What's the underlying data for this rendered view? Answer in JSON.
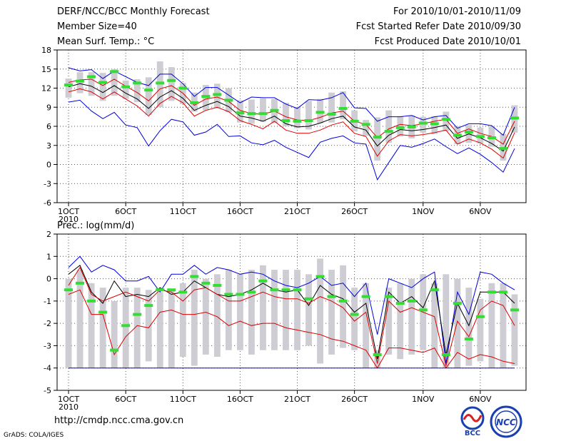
{
  "header": {
    "title": "DERF/NCC/BCC Monthly Forecast",
    "member_size": "Member Size=40",
    "variable": "Mean Surf. Temp.: °C",
    "period": "For 2010/10/01-2010/11/09",
    "started": "Fcst Started Refer Date 2010/09/30",
    "produced": "Fcst Produced Date 2010/10/01"
  },
  "footer": {
    "url": "http://cmdp.ncc.cma.gov.cn",
    "grads": "GrADS: COLA/IGES",
    "logo_left_text": "BCC",
    "logo_right_text": "NCC"
  },
  "colors": {
    "box": "#cdcdd3",
    "mean_marker": "#33dd33",
    "median": "#000000",
    "quartile": "#dd0000",
    "extreme": "#0000dd",
    "grid": "#555555"
  },
  "chart_data": [
    {
      "type": "line",
      "title": "Mean Surf. Temp.: °C",
      "x": [
        1,
        2,
        3,
        4,
        5,
        6,
        7,
        8,
        9,
        10,
        11,
        12,
        13,
        14,
        15,
        16,
        17,
        18,
        19,
        20,
        21,
        22,
        23,
        24,
        25,
        26,
        27,
        28,
        29,
        30,
        31,
        32,
        33,
        34,
        35,
        36,
        37,
        38,
        39,
        40
      ],
      "xlim": [
        0,
        41
      ],
      "ylim": [
        -6,
        18
      ],
      "yticks": [
        -6,
        -3,
        0,
        3,
        6,
        9,
        12,
        15,
        18
      ],
      "xticks": [
        {
          "x": 1,
          "label": "1OCT",
          "sub": "2010"
        },
        {
          "x": 6,
          "label": "6OCT"
        },
        {
          "x": 11,
          "label": "11OCT"
        },
        {
          "x": 16,
          "label": "16OCT"
        },
        {
          "x": 21,
          "label": "21OCT"
        },
        {
          "x": 26,
          "label": "26OCT"
        },
        {
          "x": 32,
          "label": "1NOV"
        },
        {
          "x": 37,
          "label": "6NOV"
        }
      ],
      "box_min": [
        10.5,
        11.2,
        10.8,
        10,
        10.8,
        10.3,
        9.8,
        7.8,
        9,
        10,
        9.5,
        8.3,
        8.5,
        8.8,
        8.2,
        6.6,
        6.4,
        6.7,
        6.5,
        6,
        5.7,
        5.5,
        6.5,
        6.6,
        7.1,
        5.2,
        4.5,
        0.6,
        3.4,
        4.4,
        4.1,
        5,
        4.8,
        5.2,
        3.2,
        3.4,
        3.3,
        2.8,
        0.6,
        5
      ],
      "box_max": [
        13.5,
        14.5,
        14.5,
        14.4,
        15,
        13.2,
        13.4,
        13.7,
        16.2,
        15.3,
        12.8,
        11.3,
        12.5,
        12.7,
        12,
        10.1,
        10.2,
        10.4,
        10.3,
        9.7,
        9,
        10,
        10.3,
        11.3,
        11.5,
        8.5,
        7,
        7.4,
        8.5,
        7.6,
        7.7,
        7.5,
        7.6,
        8.3,
        6,
        6.2,
        5.8,
        6,
        4.8,
        9.3
      ],
      "mean": [
        12.5,
        13.1,
        13.8,
        12.9,
        14.6,
        12.2,
        12.8,
        11.7,
        12.8,
        13.2,
        12,
        9.7,
        10.7,
        11,
        10.1,
        8.1,
        8,
        8,
        8.5,
        6.9,
        6.8,
        6.9,
        8.2,
        7.9,
        8.8,
        6.8,
        6.3,
        4.3,
        5.2,
        5.8,
        5.9,
        6.5,
        6.4,
        7.1,
        4.6,
        5.1,
        4.4,
        4.2,
        2.5,
        7.3
      ],
      "series": [
        {
          "name": "max",
          "role": "extreme",
          "values": [
            15.2,
            14.7,
            14.9,
            13.5,
            14.7,
            13.8,
            12.9,
            12.4,
            14.2,
            14.2,
            12.7,
            10.7,
            12.1,
            12.1,
            10.9,
            9.7,
            10.6,
            10.5,
            10.5,
            9.5,
            8.8,
            10.2,
            10.1,
            10.5,
            11.3,
            8.9,
            8.8,
            6.8,
            7.5,
            7.5,
            7.7,
            7,
            7.5,
            7.7,
            5.7,
            6.4,
            6.4,
            6.1,
            4.6,
            9
          ]
        },
        {
          "name": "upper quartile",
          "role": "quartile",
          "values": [
            12.9,
            13.3,
            13.4,
            12.4,
            13.4,
            12.3,
            11.3,
            10,
            11.9,
            12.4,
            11.2,
            9.3,
            10.3,
            10.6,
            9.9,
            8.5,
            8,
            7.9,
            8.4,
            7.5,
            7,
            6.9,
            7.4,
            8.1,
            8.4,
            6.8,
            6.3,
            4.2,
            5.6,
            6.3,
            6.1,
            6.4,
            6.8,
            7.1,
            4.9,
            5.6,
            4.9,
            4.4,
            3.2,
            6.8
          ]
        },
        {
          "name": "median",
          "role": "median",
          "values": [
            12.2,
            12.7,
            12.3,
            11.3,
            12.4,
            11.2,
            10.3,
            8.8,
            10.6,
            11.6,
            10.4,
            8.5,
            9.3,
            9.9,
            9.1,
            7.6,
            7.3,
            6.8,
            7.6,
            6.4,
            5.9,
            6,
            6.5,
            7.2,
            7.6,
            5.9,
            5.4,
            2.9,
            4.6,
            5.5,
            5.3,
            5.5,
            5.8,
            6.2,
            4.1,
            4.8,
            4.2,
            3.3,
            2.1,
            5.9
          ]
        },
        {
          "name": "lower quartile",
          "role": "quartile",
          "values": [
            11.4,
            11.9,
            11.4,
            10.3,
            11.4,
            10.3,
            9.2,
            7.6,
            9.6,
            10.7,
            9.7,
            7.6,
            8.5,
            9,
            8.3,
            6.9,
            6.3,
            5.6,
            6.8,
            5.4,
            4.9,
            4.9,
            5.4,
            6.2,
            6.7,
            4.9,
            4.4,
            1.3,
            3.7,
            4.7,
            4.5,
            4.7,
            5,
            5.4,
            3.2,
            4,
            3.4,
            2.4,
            1,
            5
          ]
        },
        {
          "name": "min",
          "role": "extreme",
          "values": [
            9.8,
            10.1,
            8.4,
            7.2,
            8.2,
            6.2,
            5.8,
            2.9,
            5.3,
            7.1,
            6.7,
            4.6,
            5.1,
            6.3,
            4.4,
            4.5,
            3.4,
            3.1,
            3.8,
            2.7,
            1.9,
            1.1,
            3.5,
            4.1,
            4.5,
            3.4,
            3.2,
            -2.4,
            0.3,
            3,
            2.7,
            3.3,
            4,
            2.8,
            1.7,
            2.6,
            1.6,
            0.3,
            -1.2,
            2.5
          ]
        }
      ]
    },
    {
      "type": "line",
      "title": "Prec.: log(mm/d)",
      "x": [
        1,
        2,
        3,
        4,
        5,
        6,
        7,
        8,
        9,
        10,
        11,
        12,
        13,
        14,
        15,
        16,
        17,
        18,
        19,
        20,
        21,
        22,
        23,
        24,
        25,
        26,
        27,
        28,
        29,
        30,
        31,
        32,
        33,
        34,
        35,
        36,
        37,
        38,
        39,
        40
      ],
      "xlim": [
        0,
        41
      ],
      "ylim": [
        -5,
        2
      ],
      "yticks": [
        -5,
        -4,
        -3,
        -2,
        -1,
        0,
        1,
        2
      ],
      "xticks": [
        {
          "x": 1,
          "label": "1OCT",
          "sub": "2010"
        },
        {
          "x": 6,
          "label": "6OCT"
        },
        {
          "x": 11,
          "label": "11OCT"
        },
        {
          "x": 16,
          "label": "16OCT"
        },
        {
          "x": 21,
          "label": "21OCT"
        },
        {
          "x": 26,
          "label": "26OCT"
        },
        {
          "x": 32,
          "label": "1NOV"
        },
        {
          "x": 37,
          "label": "6NOV"
        }
      ],
      "box_min": [
        -4,
        -4,
        -4,
        -4,
        -4,
        -4,
        -4,
        -3.7,
        -4,
        -4,
        -3.5,
        -3.9,
        -3.4,
        -3.5,
        -3.2,
        -3.2,
        -3.4,
        -3.2,
        -3.2,
        -3.2,
        -3.2,
        -3,
        -3.8,
        -3.4,
        -3.1,
        -3.2,
        -4,
        -4,
        -3.4,
        -3.6,
        -3.4,
        -3.2,
        -4,
        -4,
        -4,
        -3.9,
        -3.7,
        -4,
        -4,
        -3.9
      ],
      "box_max": [
        0,
        0.4,
        -0.2,
        -0.4,
        -1,
        -0.4,
        -0.4,
        -0.5,
        -0.6,
        -0.5,
        -0.2,
        0.4,
        0,
        0.2,
        0.4,
        0.2,
        0.4,
        0.6,
        0.4,
        0.4,
        0.4,
        0.2,
        0.9,
        0.4,
        0.6,
        -0.4,
        -0.2,
        -3.2,
        -0.4,
        -0.2,
        0,
        0.2,
        -0.2,
        0.2,
        0,
        -0.4,
        -0.9,
        -0.2,
        -0.2,
        -0.7
      ],
      "mean": [
        -0.5,
        -0.2,
        -1,
        -1.5,
        -3.2,
        -2.1,
        -1.6,
        -1.2,
        -0.5,
        -0.5,
        -0.6,
        0.1,
        -0.2,
        -0.3,
        -0.7,
        -0.7,
        -0.6,
        -0.1,
        -0.5,
        -0.5,
        -0.5,
        -0.9,
        0.1,
        -0.8,
        -1,
        -1.6,
        -0.8,
        -3.4,
        -0.8,
        -1.1,
        -1,
        -1.4,
        -0.5,
        -3.4,
        -1.1,
        -2.7,
        -1.7,
        -0.6,
        -0.6,
        -1.4
      ],
      "series": [
        {
          "name": "max",
          "role": "extreme",
          "values": [
            0.5,
            1,
            0.3,
            0.6,
            0.4,
            -0.1,
            -0.1,
            0.1,
            -0.6,
            0.2,
            0.2,
            0.6,
            0.2,
            0.5,
            0.4,
            0.2,
            0.3,
            0.2,
            -0.1,
            -0.3,
            -0.4,
            -0.2,
            0.1,
            -0.3,
            -0.2,
            -0.8,
            -0.2,
            -2.5,
            0,
            -0.2,
            -0.4,
            0,
            0.3,
            -3.8,
            -0.6,
            -1.6,
            0.3,
            0.2,
            -0.2,
            -0.5
          ]
        },
        {
          "name": "median",
          "role": "median",
          "values": [
            0.2,
            0.6,
            -0.6,
            -1.1,
            -0.1,
            -0.8,
            -0.7,
            -0.8,
            -0.4,
            -0.7,
            -0.6,
            -0.1,
            -0.4,
            -0.7,
            -0.8,
            -0.7,
            -0.5,
            -0.2,
            -0.5,
            -0.6,
            -0.5,
            -1.2,
            -0.3,
            -0.7,
            -0.9,
            -1.5,
            -1.1,
            -3.6,
            -0.6,
            -1.1,
            -0.8,
            -1.3,
            -0.1,
            -3.4,
            -1.1,
            -2.1,
            -0.6,
            -0.6,
            -0.6,
            -1.1
          ]
        },
        {
          "name": "upper quartile",
          "role": "quartile",
          "values": [
            -0.3,
            0.5,
            -0.7,
            -1,
            -0.8,
            -0.6,
            -0.8,
            -1,
            -0.5,
            -0.6,
            -1,
            -0.5,
            -0.4,
            -0.7,
            -1,
            -1,
            -0.8,
            -0.6,
            -0.8,
            -0.9,
            -0.9,
            -1.1,
            -0.8,
            -1,
            -1.3,
            -1.9,
            -1.5,
            -3.8,
            -1,
            -1.5,
            -1.3,
            -1.5,
            -1.7,
            -3.9,
            -1.9,
            -2.6,
            -1.4,
            -1,
            -1.2,
            -2.1
          ]
        },
        {
          "name": "lower quartile",
          "role": "quartile",
          "values": [
            -0.7,
            -0.5,
            -1.6,
            -1.6,
            -3.4,
            -2.6,
            -2.1,
            -2.2,
            -1.5,
            -1.4,
            -1.6,
            -1.6,
            -1.5,
            -1.7,
            -2.1,
            -1.9,
            -2.1,
            -2,
            -2,
            -2.2,
            -2.3,
            -2.4,
            -2.5,
            -2.7,
            -2.8,
            -3,
            -3.2,
            -4,
            -3.1,
            -3.1,
            -3.2,
            -3.3,
            -3.1,
            -4,
            -3.3,
            -3.6,
            -3.4,
            -3.5,
            -3.7,
            -3.8
          ]
        },
        {
          "name": "min",
          "role": "extreme",
          "values": [
            -4,
            -4,
            -4,
            -4,
            -4,
            -4,
            -4,
            -4,
            -4,
            -4,
            -4,
            -4,
            -4,
            -4,
            -4,
            -4,
            -4,
            -4,
            -4,
            -4,
            -4,
            -4,
            -4,
            -4,
            -4,
            -4,
            -4,
            -4,
            -4,
            -4,
            -4,
            -4,
            -4,
            -4,
            -4,
            -4,
            -4,
            -4,
            -4,
            -4
          ]
        }
      ]
    }
  ]
}
